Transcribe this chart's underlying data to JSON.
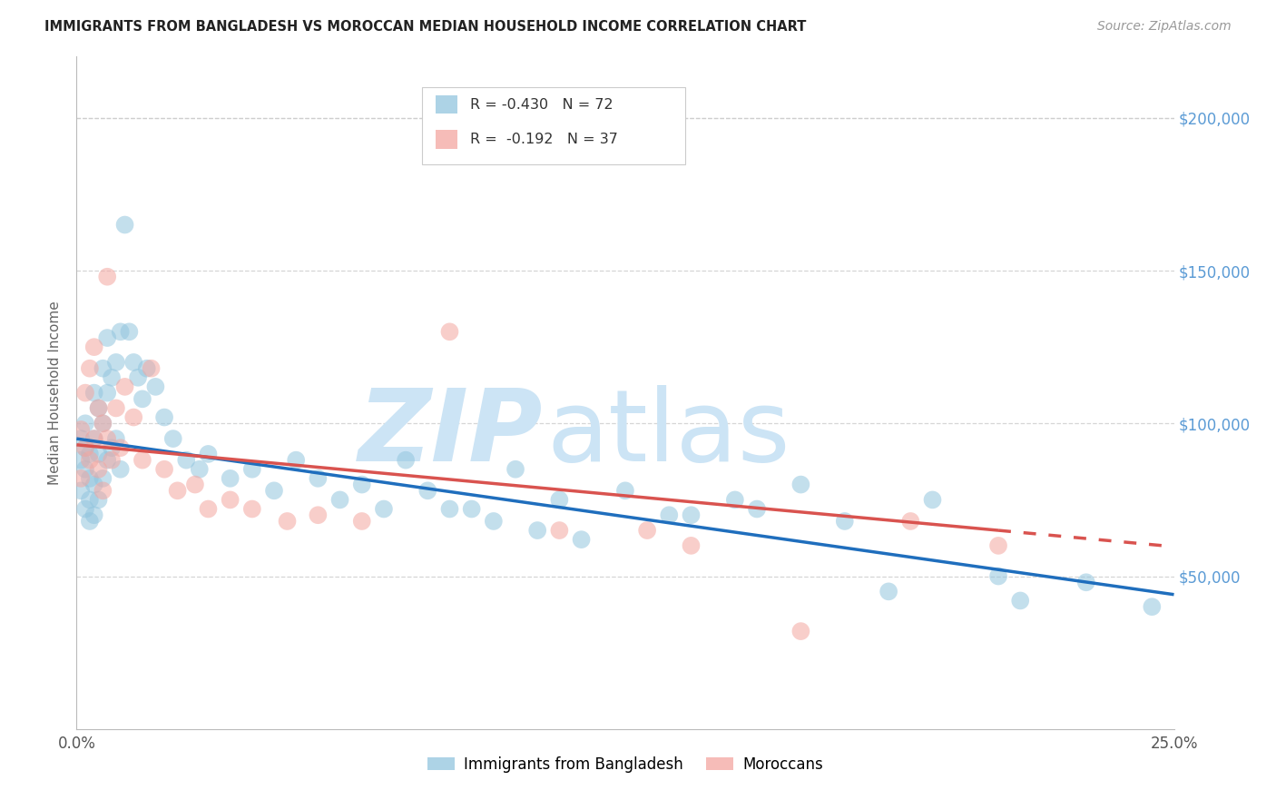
{
  "title": "IMMIGRANTS FROM BANGLADESH VS MOROCCAN MEDIAN HOUSEHOLD INCOME CORRELATION CHART",
  "source": "Source: ZipAtlas.com",
  "ylabel": "Median Household Income",
  "legend_label_blue": "Immigrants from Bangladesh",
  "legend_label_pink": "Moroccans",
  "legend_R_blue": "R = -0.430",
  "legend_N_blue": "N = 72",
  "legend_R_pink": "R =  -0.192",
  "legend_N_pink": "N = 37",
  "color_blue": "#92c5de",
  "color_pink": "#f4a6a0",
  "color_blue_line": "#1f6ebd",
  "color_pink_line": "#d9534f",
  "color_right_axis": "#5b9bd5",
  "watermark_zip_color": "#cce4f5",
  "watermark_atlas_color": "#cce4f5",
  "ylim_min": 0,
  "ylim_max": 220000,
  "xlim_min": 0.0,
  "xlim_max": 0.25,
  "yticks": [
    0,
    50000,
    100000,
    150000,
    200000
  ],
  "xticks": [
    0.0,
    0.05,
    0.1,
    0.15,
    0.2,
    0.25
  ],
  "xtick_labels": [
    "0.0%",
    "",
    "",
    "",
    "",
    "25.0%"
  ],
  "grid_color": "#cccccc",
  "background_color": "#ffffff",
  "blue_x": [
    0.001,
    0.001,
    0.001,
    0.002,
    0.002,
    0.002,
    0.002,
    0.003,
    0.003,
    0.003,
    0.003,
    0.004,
    0.004,
    0.004,
    0.004,
    0.005,
    0.005,
    0.005,
    0.006,
    0.006,
    0.006,
    0.007,
    0.007,
    0.007,
    0.008,
    0.008,
    0.009,
    0.009,
    0.01,
    0.01,
    0.011,
    0.012,
    0.013,
    0.014,
    0.015,
    0.016,
    0.018,
    0.02,
    0.022,
    0.025,
    0.028,
    0.03,
    0.035,
    0.04,
    0.045,
    0.05,
    0.055,
    0.06,
    0.065,
    0.07,
    0.08,
    0.09,
    0.1,
    0.11,
    0.125,
    0.14,
    0.155,
    0.175,
    0.195,
    0.215,
    0.23,
    0.245,
    0.165,
    0.075,
    0.085,
    0.095,
    0.105,
    0.115,
    0.135,
    0.15,
    0.185,
    0.21
  ],
  "blue_y": [
    95000,
    88000,
    78000,
    100000,
    92000,
    85000,
    72000,
    90000,
    82000,
    75000,
    68000,
    110000,
    95000,
    80000,
    70000,
    105000,
    90000,
    75000,
    118000,
    100000,
    82000,
    128000,
    110000,
    88000,
    115000,
    92000,
    120000,
    95000,
    130000,
    85000,
    165000,
    130000,
    120000,
    115000,
    108000,
    118000,
    112000,
    102000,
    95000,
    88000,
    85000,
    90000,
    82000,
    85000,
    78000,
    88000,
    82000,
    75000,
    80000,
    72000,
    78000,
    72000,
    85000,
    75000,
    78000,
    70000,
    72000,
    68000,
    75000,
    42000,
    48000,
    40000,
    80000,
    88000,
    72000,
    68000,
    65000,
    62000,
    70000,
    75000,
    45000,
    50000
  ],
  "pink_x": [
    0.001,
    0.001,
    0.002,
    0.002,
    0.003,
    0.003,
    0.004,
    0.004,
    0.005,
    0.005,
    0.006,
    0.006,
    0.007,
    0.007,
    0.008,
    0.009,
    0.01,
    0.011,
    0.013,
    0.015,
    0.017,
    0.02,
    0.023,
    0.027,
    0.03,
    0.035,
    0.04,
    0.048,
    0.055,
    0.065,
    0.085,
    0.11,
    0.14,
    0.165,
    0.19,
    0.21,
    0.13
  ],
  "pink_y": [
    98000,
    82000,
    110000,
    92000,
    118000,
    88000,
    125000,
    95000,
    105000,
    85000,
    100000,
    78000,
    148000,
    95000,
    88000,
    105000,
    92000,
    112000,
    102000,
    88000,
    118000,
    85000,
    78000,
    80000,
    72000,
    75000,
    72000,
    68000,
    70000,
    68000,
    130000,
    65000,
    60000,
    32000,
    68000,
    60000,
    65000
  ],
  "scatter_size": 200,
  "scatter_alpha": 0.55,
  "line_width": 2.5,
  "blue_line_x0": 0.0,
  "blue_line_y0": 95000,
  "blue_line_x1": 0.25,
  "blue_line_y1": 44000,
  "pink_line_x0": 0.0,
  "pink_line_y0": 93000,
  "pink_line_x1": 0.21,
  "pink_line_y1": 65000
}
